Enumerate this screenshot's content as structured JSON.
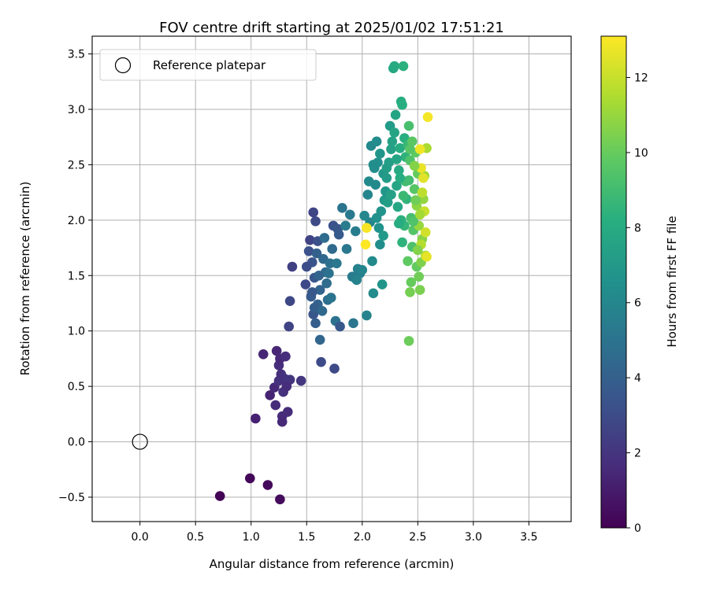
{
  "chart_data": {
    "type": "scatter",
    "title": "FOV centre drift starting at 2025/01/02 17:51:21",
    "xlabel": "Angular distance from reference (arcmin)",
    "ylabel": "Rotation from reference (arcmin)",
    "xlim": [
      -0.43,
      3.88
    ],
    "ylim": [
      -0.72,
      3.66
    ],
    "xticks": [
      0.0,
      0.5,
      1.0,
      1.5,
      2.0,
      2.5,
      3.0,
      3.5
    ],
    "yticks": [
      -0.5,
      0.0,
      0.5,
      1.0,
      1.5,
      2.0,
      2.5,
      3.0,
      3.5
    ],
    "xtick_labels": [
      "0.0",
      "0.5",
      "1.0",
      "1.5",
      "2.0",
      "2.5",
      "3.0",
      "3.5"
    ],
    "ytick_labels": [
      "−0.5",
      "0.0",
      "0.5",
      "1.0",
      "1.5",
      "2.0",
      "2.5",
      "3.0",
      "3.5"
    ],
    "grid": true,
    "legend": {
      "placement": "top-left",
      "entries": [
        "Reference platepar"
      ]
    },
    "reference_point": {
      "x": 0.0,
      "y": 0.0,
      "label": "Reference platepar"
    },
    "colorbar": {
      "label": "Hours from first FF file",
      "range": [
        0,
        13.1
      ],
      "ticks": [
        0,
        2,
        4,
        6,
        8,
        10,
        12
      ],
      "tick_labels": [
        "0",
        "2",
        "4",
        "6",
        "8",
        "10",
        "12"
      ],
      "colormap": "viridis"
    },
    "points": [
      {
        "x": 0.72,
        "y": -0.49,
        "h": 0.1
      },
      {
        "x": 0.99,
        "y": -0.33,
        "h": 0.2
      },
      {
        "x": 1.15,
        "y": -0.39,
        "h": 0.3
      },
      {
        "x": 1.26,
        "y": -0.52,
        "h": 0.4
      },
      {
        "x": 1.04,
        "y": 0.21,
        "h": 1.2
      },
      {
        "x": 1.11,
        "y": 0.79,
        "h": 1.4
      },
      {
        "x": 1.17,
        "y": 0.42,
        "h": 1.3
      },
      {
        "x": 1.21,
        "y": 0.49,
        "h": 1.5
      },
      {
        "x": 1.22,
        "y": 0.33,
        "h": 1.6
      },
      {
        "x": 1.23,
        "y": 0.82,
        "h": 1.4
      },
      {
        "x": 1.25,
        "y": 0.69,
        "h": 1.7
      },
      {
        "x": 1.26,
        "y": 0.75,
        "h": 1.5
      },
      {
        "x": 1.27,
        "y": 0.61,
        "h": 1.8
      },
      {
        "x": 1.28,
        "y": 0.23,
        "h": 1.6
      },
      {
        "x": 1.28,
        "y": 0.18,
        "h": 1.5
      },
      {
        "x": 1.29,
        "y": 0.45,
        "h": 1.8
      },
      {
        "x": 1.3,
        "y": 0.57,
        "h": 1.9
      },
      {
        "x": 1.31,
        "y": 0.77,
        "h": 1.7
      },
      {
        "x": 1.33,
        "y": 0.27,
        "h": 1.6
      },
      {
        "x": 1.35,
        "y": 0.56,
        "h": 2.0
      },
      {
        "x": 1.45,
        "y": 0.55,
        "h": 2.1
      },
      {
        "x": 1.25,
        "y": 0.55,
        "h": 1.8
      },
      {
        "x": 1.32,
        "y": 0.5,
        "h": 1.7
      },
      {
        "x": 1.34,
        "y": 1.04,
        "h": 2.6
      },
      {
        "x": 1.35,
        "y": 1.27,
        "h": 2.8
      },
      {
        "x": 1.37,
        "y": 1.58,
        "h": 2.5
      },
      {
        "x": 1.53,
        "y": 1.82,
        "h": 2.6
      },
      {
        "x": 1.56,
        "y": 2.07,
        "h": 2.7
      },
      {
        "x": 1.58,
        "y": 1.99,
        "h": 2.9
      },
      {
        "x": 1.6,
        "y": 1.81,
        "h": 3.2
      },
      {
        "x": 1.55,
        "y": 1.62,
        "h": 3.4
      },
      {
        "x": 1.57,
        "y": 1.48,
        "h": 3.6
      },
      {
        "x": 1.54,
        "y": 1.31,
        "h": 3.8
      },
      {
        "x": 1.56,
        "y": 1.15,
        "h": 3.5
      },
      {
        "x": 1.58,
        "y": 1.07,
        "h": 3.9
      },
      {
        "x": 1.6,
        "y": 1.24,
        "h": 4.1
      },
      {
        "x": 1.62,
        "y": 1.37,
        "h": 4.2
      },
      {
        "x": 1.62,
        "y": 0.92,
        "h": 4.3
      },
      {
        "x": 1.63,
        "y": 0.72,
        "h": 3.0
      },
      {
        "x": 1.65,
        "y": 1.65,
        "h": 4.4
      },
      {
        "x": 1.67,
        "y": 1.53,
        "h": 4.5
      },
      {
        "x": 1.68,
        "y": 1.43,
        "h": 4.6
      },
      {
        "x": 1.69,
        "y": 1.28,
        "h": 4.7
      },
      {
        "x": 1.71,
        "y": 1.61,
        "h": 4.8
      },
      {
        "x": 1.73,
        "y": 1.74,
        "h": 4.5
      },
      {
        "x": 1.74,
        "y": 1.95,
        "h": 3.3
      },
      {
        "x": 1.75,
        "y": 0.66,
        "h": 2.9
      },
      {
        "x": 1.76,
        "y": 1.09,
        "h": 4.9
      },
      {
        "x": 1.78,
        "y": 1.92,
        "h": 3.5
      },
      {
        "x": 1.79,
        "y": 1.87,
        "h": 3.7
      },
      {
        "x": 1.8,
        "y": 1.04,
        "h": 3.6
      },
      {
        "x": 1.82,
        "y": 2.11,
        "h": 5.0
      },
      {
        "x": 1.86,
        "y": 1.74,
        "h": 5.2
      },
      {
        "x": 1.89,
        "y": 2.05,
        "h": 5.3
      },
      {
        "x": 1.91,
        "y": 1.49,
        "h": 5.4
      },
      {
        "x": 1.92,
        "y": 1.07,
        "h": 5.1
      },
      {
        "x": 1.94,
        "y": 1.9,
        "h": 5.5
      },
      {
        "x": 1.96,
        "y": 1.56,
        "h": 5.7
      },
      {
        "x": 1.98,
        "y": 1.52,
        "h": 5.6
      },
      {
        "x": 2.04,
        "y": 1.14,
        "h": 5.8
      },
      {
        "x": 2.05,
        "y": 2.23,
        "h": 5.9
      },
      {
        "x": 2.07,
        "y": 1.98,
        "h": 6.0
      },
      {
        "x": 2.08,
        "y": 2.67,
        "h": 6.1
      },
      {
        "x": 2.09,
        "y": 1.63,
        "h": 6.2
      },
      {
        "x": 2.1,
        "y": 1.34,
        "h": 6.3
      },
      {
        "x": 2.11,
        "y": 2.47,
        "h": 6.4
      },
      {
        "x": 2.12,
        "y": 2.32,
        "h": 6.2
      },
      {
        "x": 2.13,
        "y": 2.71,
        "h": 6.3
      },
      {
        "x": 2.14,
        "y": 2.52,
        "h": 6.5
      },
      {
        "x": 2.15,
        "y": 1.93,
        "h": 6.6
      },
      {
        "x": 2.16,
        "y": 1.78,
        "h": 6.4
      },
      {
        "x": 2.17,
        "y": 2.08,
        "h": 6.7
      },
      {
        "x": 2.18,
        "y": 1.42,
        "h": 6.8
      },
      {
        "x": 2.19,
        "y": 2.42,
        "h": 6.9
      },
      {
        "x": 2.2,
        "y": 2.18,
        "h": 7.0
      },
      {
        "x": 2.21,
        "y": 2.26,
        "h": 6.9
      },
      {
        "x": 2.22,
        "y": 2.38,
        "h": 7.1
      },
      {
        "x": 2.23,
        "y": 2.16,
        "h": 7.2
      },
      {
        "x": 2.24,
        "y": 2.52,
        "h": 7.3
      },
      {
        "x": 2.25,
        "y": 2.85,
        "h": 7.1
      },
      {
        "x": 2.26,
        "y": 2.64,
        "h": 7.4
      },
      {
        "x": 2.27,
        "y": 2.71,
        "h": 7.5
      },
      {
        "x": 2.28,
        "y": 3.37,
        "h": 7.8
      },
      {
        "x": 2.29,
        "y": 3.39,
        "h": 7.9
      },
      {
        "x": 2.3,
        "y": 2.95,
        "h": 7.6
      },
      {
        "x": 2.31,
        "y": 2.31,
        "h": 7.7
      },
      {
        "x": 2.32,
        "y": 2.12,
        "h": 7.8
      },
      {
        "x": 2.33,
        "y": 2.45,
        "h": 7.9
      },
      {
        "x": 2.34,
        "y": 2.65,
        "h": 8.0
      },
      {
        "x": 2.35,
        "y": 3.07,
        "h": 8.1
      },
      {
        "x": 2.36,
        "y": 3.04,
        "h": 8.2
      },
      {
        "x": 2.37,
        "y": 3.39,
        "h": 8.3
      },
      {
        "x": 2.38,
        "y": 2.74,
        "h": 8.2
      },
      {
        "x": 2.39,
        "y": 2.57,
        "h": 8.4
      },
      {
        "x": 2.4,
        "y": 2.19,
        "h": 8.5
      },
      {
        "x": 2.41,
        "y": 2.68,
        "h": 8.7
      },
      {
        "x": 2.42,
        "y": 2.85,
        "h": 9.2
      },
      {
        "x": 2.42,
        "y": 2.36,
        "h": 9.0
      },
      {
        "x": 2.43,
        "y": 2.54,
        "h": 9.4
      },
      {
        "x": 2.44,
        "y": 2.02,
        "h": 9.1
      },
      {
        "x": 2.45,
        "y": 1.76,
        "h": 9.3
      },
      {
        "x": 2.46,
        "y": 1.91,
        "h": 9.5
      },
      {
        "x": 2.47,
        "y": 2.28,
        "h": 9.6
      },
      {
        "x": 2.48,
        "y": 2.61,
        "h": 9.8
      },
      {
        "x": 2.49,
        "y": 1.58,
        "h": 9.9
      },
      {
        "x": 2.5,
        "y": 2.42,
        "h": 10.0
      },
      {
        "x": 2.51,
        "y": 1.49,
        "h": 10.2
      },
      {
        "x": 2.52,
        "y": 1.37,
        "h": 10.4
      },
      {
        "x": 2.53,
        "y": 1.62,
        "h": 10.5
      },
      {
        "x": 2.54,
        "y": 1.83,
        "h": 10.7
      },
      {
        "x": 2.55,
        "y": 2.19,
        "h": 10.9
      },
      {
        "x": 2.56,
        "y": 2.4,
        "h": 11.2
      },
      {
        "x": 2.57,
        "y": 1.68,
        "h": 11.5
      },
      {
        "x": 2.58,
        "y": 2.65,
        "h": 11.4
      },
      {
        "x": 2.59,
        "y": 2.93,
        "h": 12.9
      },
      {
        "x": 2.52,
        "y": 2.64,
        "h": 12.8
      },
      {
        "x": 2.53,
        "y": 2.47,
        "h": 12.7
      },
      {
        "x": 2.55,
        "y": 2.38,
        "h": 12.5
      },
      {
        "x": 2.04,
        "y": 1.93,
        "h": 13.0
      },
      {
        "x": 2.03,
        "y": 1.78,
        "h": 13.1
      },
      {
        "x": 2.58,
        "y": 1.67,
        "h": 12.6
      },
      {
        "x": 2.42,
        "y": 0.91,
        "h": 10.1
      },
      {
        "x": 2.43,
        "y": 1.35,
        "h": 10.3
      },
      {
        "x": 2.45,
        "y": 2.71,
        "h": 9.7
      },
      {
        "x": 2.47,
        "y": 2.49,
        "h": 10.6
      },
      {
        "x": 2.49,
        "y": 2.13,
        "h": 10.8
      },
      {
        "x": 2.51,
        "y": 1.95,
        "h": 11.0
      },
      {
        "x": 2.53,
        "y": 1.78,
        "h": 11.6
      },
      {
        "x": 2.54,
        "y": 2.25,
        "h": 11.8
      },
      {
        "x": 2.56,
        "y": 2.08,
        "h": 12.0
      },
      {
        "x": 2.57,
        "y": 1.89,
        "h": 12.2
      },
      {
        "x": 2.44,
        "y": 1.44,
        "h": 10.0
      },
      {
        "x": 2.41,
        "y": 1.63,
        "h": 9.8
      },
      {
        "x": 2.46,
        "y": 1.99,
        "h": 9.4
      },
      {
        "x": 2.38,
        "y": 1.95,
        "h": 8.6
      },
      {
        "x": 2.36,
        "y": 1.8,
        "h": 8.4
      },
      {
        "x": 2.35,
        "y": 2.0,
        "h": 8.3
      },
      {
        "x": 2.37,
        "y": 2.22,
        "h": 8.8
      },
      {
        "x": 2.39,
        "y": 2.35,
        "h": 9.0
      },
      {
        "x": 2.43,
        "y": 2.64,
        "h": 9.6
      },
      {
        "x": 2.48,
        "y": 2.18,
        "h": 10.2
      },
      {
        "x": 2.5,
        "y": 1.73,
        "h": 10.6
      },
      {
        "x": 2.52,
        "y": 2.05,
        "h": 11.3
      },
      {
        "x": 1.49,
        "y": 1.42,
        "h": 2.9
      },
      {
        "x": 1.5,
        "y": 1.58,
        "h": 3.1
      },
      {
        "x": 1.52,
        "y": 1.72,
        "h": 3.3
      },
      {
        "x": 1.55,
        "y": 1.35,
        "h": 3.6
      },
      {
        "x": 1.57,
        "y": 1.21,
        "h": 3.9
      },
      {
        "x": 1.59,
        "y": 1.7,
        "h": 4.0
      },
      {
        "x": 1.61,
        "y": 1.5,
        "h": 4.2
      },
      {
        "x": 1.64,
        "y": 1.18,
        "h": 4.4
      },
      {
        "x": 1.66,
        "y": 1.84,
        "h": 4.6
      },
      {
        "x": 1.7,
        "y": 1.52,
        "h": 4.9
      },
      {
        "x": 1.72,
        "y": 1.3,
        "h": 5.0
      },
      {
        "x": 1.77,
        "y": 1.61,
        "h": 5.2
      },
      {
        "x": 1.85,
        "y": 1.95,
        "h": 5.4
      },
      {
        "x": 1.95,
        "y": 1.46,
        "h": 5.8
      },
      {
        "x": 2.0,
        "y": 1.55,
        "h": 5.9
      },
      {
        "x": 2.02,
        "y": 2.04,
        "h": 6.0
      },
      {
        "x": 2.06,
        "y": 2.35,
        "h": 6.2
      },
      {
        "x": 2.1,
        "y": 2.5,
        "h": 6.4
      },
      {
        "x": 2.13,
        "y": 2.02,
        "h": 6.6
      },
      {
        "x": 2.16,
        "y": 2.6,
        "h": 6.8
      },
      {
        "x": 2.19,
        "y": 1.86,
        "h": 7.0
      },
      {
        "x": 2.22,
        "y": 2.47,
        "h": 7.2
      },
      {
        "x": 2.26,
        "y": 2.23,
        "h": 7.4
      },
      {
        "x": 2.29,
        "y": 2.79,
        "h": 7.6
      },
      {
        "x": 2.31,
        "y": 2.55,
        "h": 7.7
      },
      {
        "x": 2.33,
        "y": 1.97,
        "h": 8.0
      },
      {
        "x": 2.34,
        "y": 2.38,
        "h": 8.1
      }
    ]
  }
}
